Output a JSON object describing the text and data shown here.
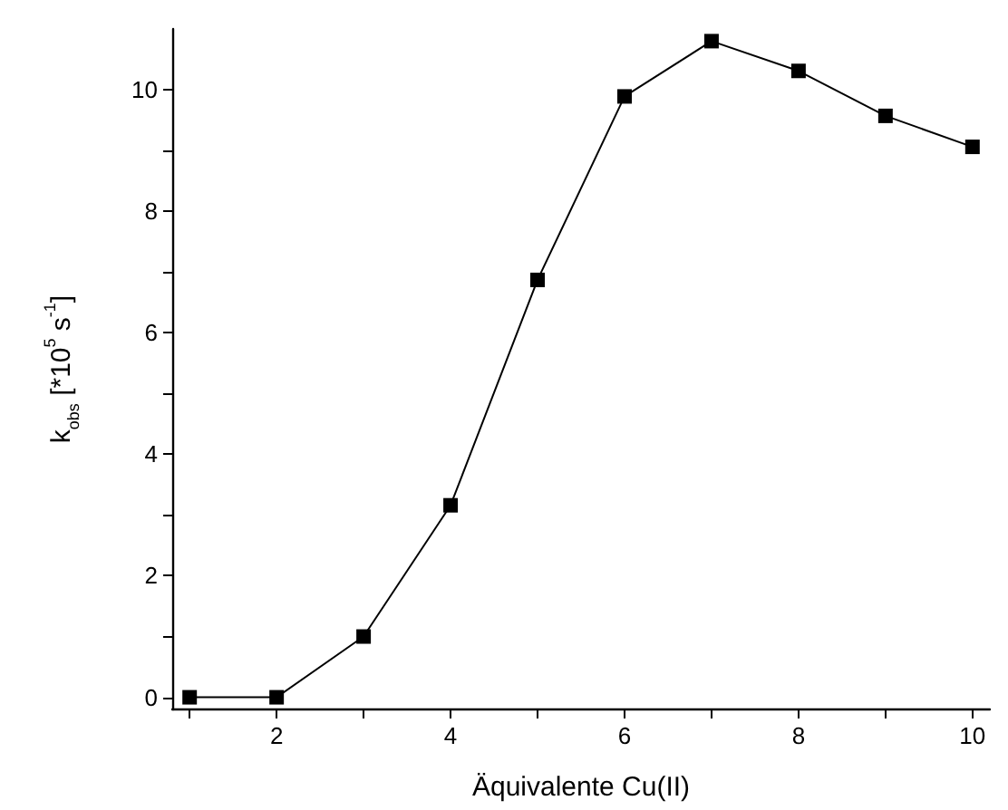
{
  "chart_data": {
    "type": "line",
    "xlabel": "Äquivalente Cu(II)",
    "ylabel": "k$_{obs}$ [*10$^{5}$ s$^{-1}$]",
    "x": [
      1,
      2,
      3,
      4,
      5,
      6,
      7,
      8,
      9,
      10
    ],
    "series": [
      {
        "color": "#000000",
        "values": [
          0,
          0,
          1.0,
          3.16,
          6.87,
          9.89,
          10.8,
          10.31,
          9.57,
          9.06
        ]
      }
    ],
    "xlim": [
      0.8,
      10.2
    ],
    "xticks": [
      {
        "value": 1,
        "label": null
      },
      2,
      {
        "value": 3,
        "label": null
      },
      4,
      {
        "value": 5,
        "label": null
      },
      6,
      {
        "value": 7,
        "label": null
      },
      8,
      {
        "value": 9,
        "label": null
      },
      10
    ],
    "ylim": [
      -0.2,
      11
    ],
    "yticks": [
      0,
      {
        "value": 1,
        "label": null
      },
      2,
      {
        "value": 3,
        "label": null
      },
      4,
      {
        "value": 5,
        "label": null
      },
      6,
      {
        "value": 7,
        "label": null
      },
      8,
      {
        "value": 9,
        "label": null
      },
      10
    ],
    "marker": "square",
    "line_style": "solid"
  }
}
